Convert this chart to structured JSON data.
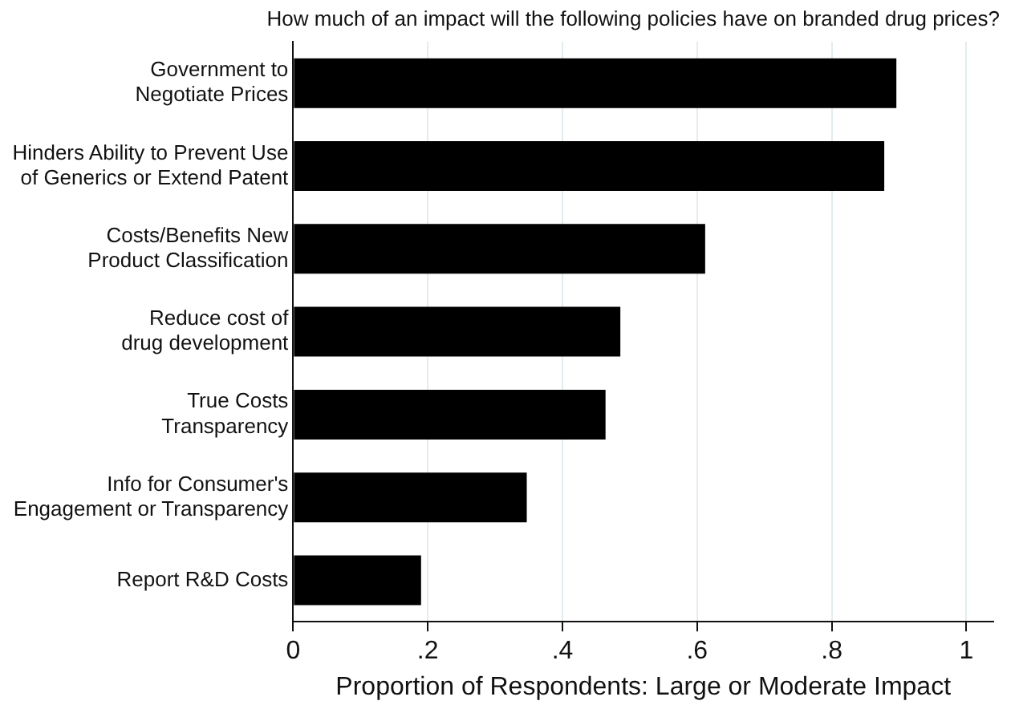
{
  "chart_data": {
    "type": "bar",
    "orientation": "horizontal",
    "title": "How much of an impact will the following policies have on branded drug prices?",
    "xlabel": "Proportion of Respondents: Large or Moderate Impact",
    "categories": [
      "Government to\nNegotiate Prices",
      "Hinders Ability to Prevent Use\nof Generics or Extend Patent",
      "Costs/Benefits New\nProduct Classification",
      "Reduce cost of\ndrug development",
      "True Costs\nTransparency",
      "Info for Consumer's\nEngagement or Transparency",
      "Report R&D Costs"
    ],
    "values": [
      0.896,
      0.878,
      0.612,
      0.486,
      0.464,
      0.347,
      0.19
    ],
    "color": "#000000",
    "xlim": [
      0,
      1.04
    ],
    "xticks": [
      0,
      {
        "value": 0.2,
        "label": ".2"
      },
      {
        "value": 0.4,
        "label": ".4"
      },
      {
        "value": 0.6,
        "label": ".6"
      },
      {
        "value": 0.8,
        "label": ".8"
      },
      1
    ],
    "grid": "x"
  }
}
